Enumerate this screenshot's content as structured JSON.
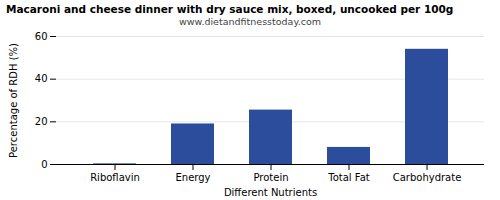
{
  "chart_data": {
    "type": "bar",
    "title": "Macaroni and cheese dinner with dry sauce mix, boxed, uncooked per 100g",
    "subtitle": "www.dietandfitnesstoday.com",
    "xlabel": "Different Nutrients",
    "ylabel": "Percentage of RDH (%)",
    "categories": [
      "Riboflavin",
      "Energy",
      "Protein",
      "Total Fat",
      "Carbohydrate"
    ],
    "values": [
      0.3,
      19.0,
      25.5,
      8.0,
      54.0
    ],
    "color": "#2b4d9c",
    "ylim": [
      0,
      60
    ],
    "yticks": [
      0,
      20,
      40,
      60
    ],
    "grid": true
  }
}
